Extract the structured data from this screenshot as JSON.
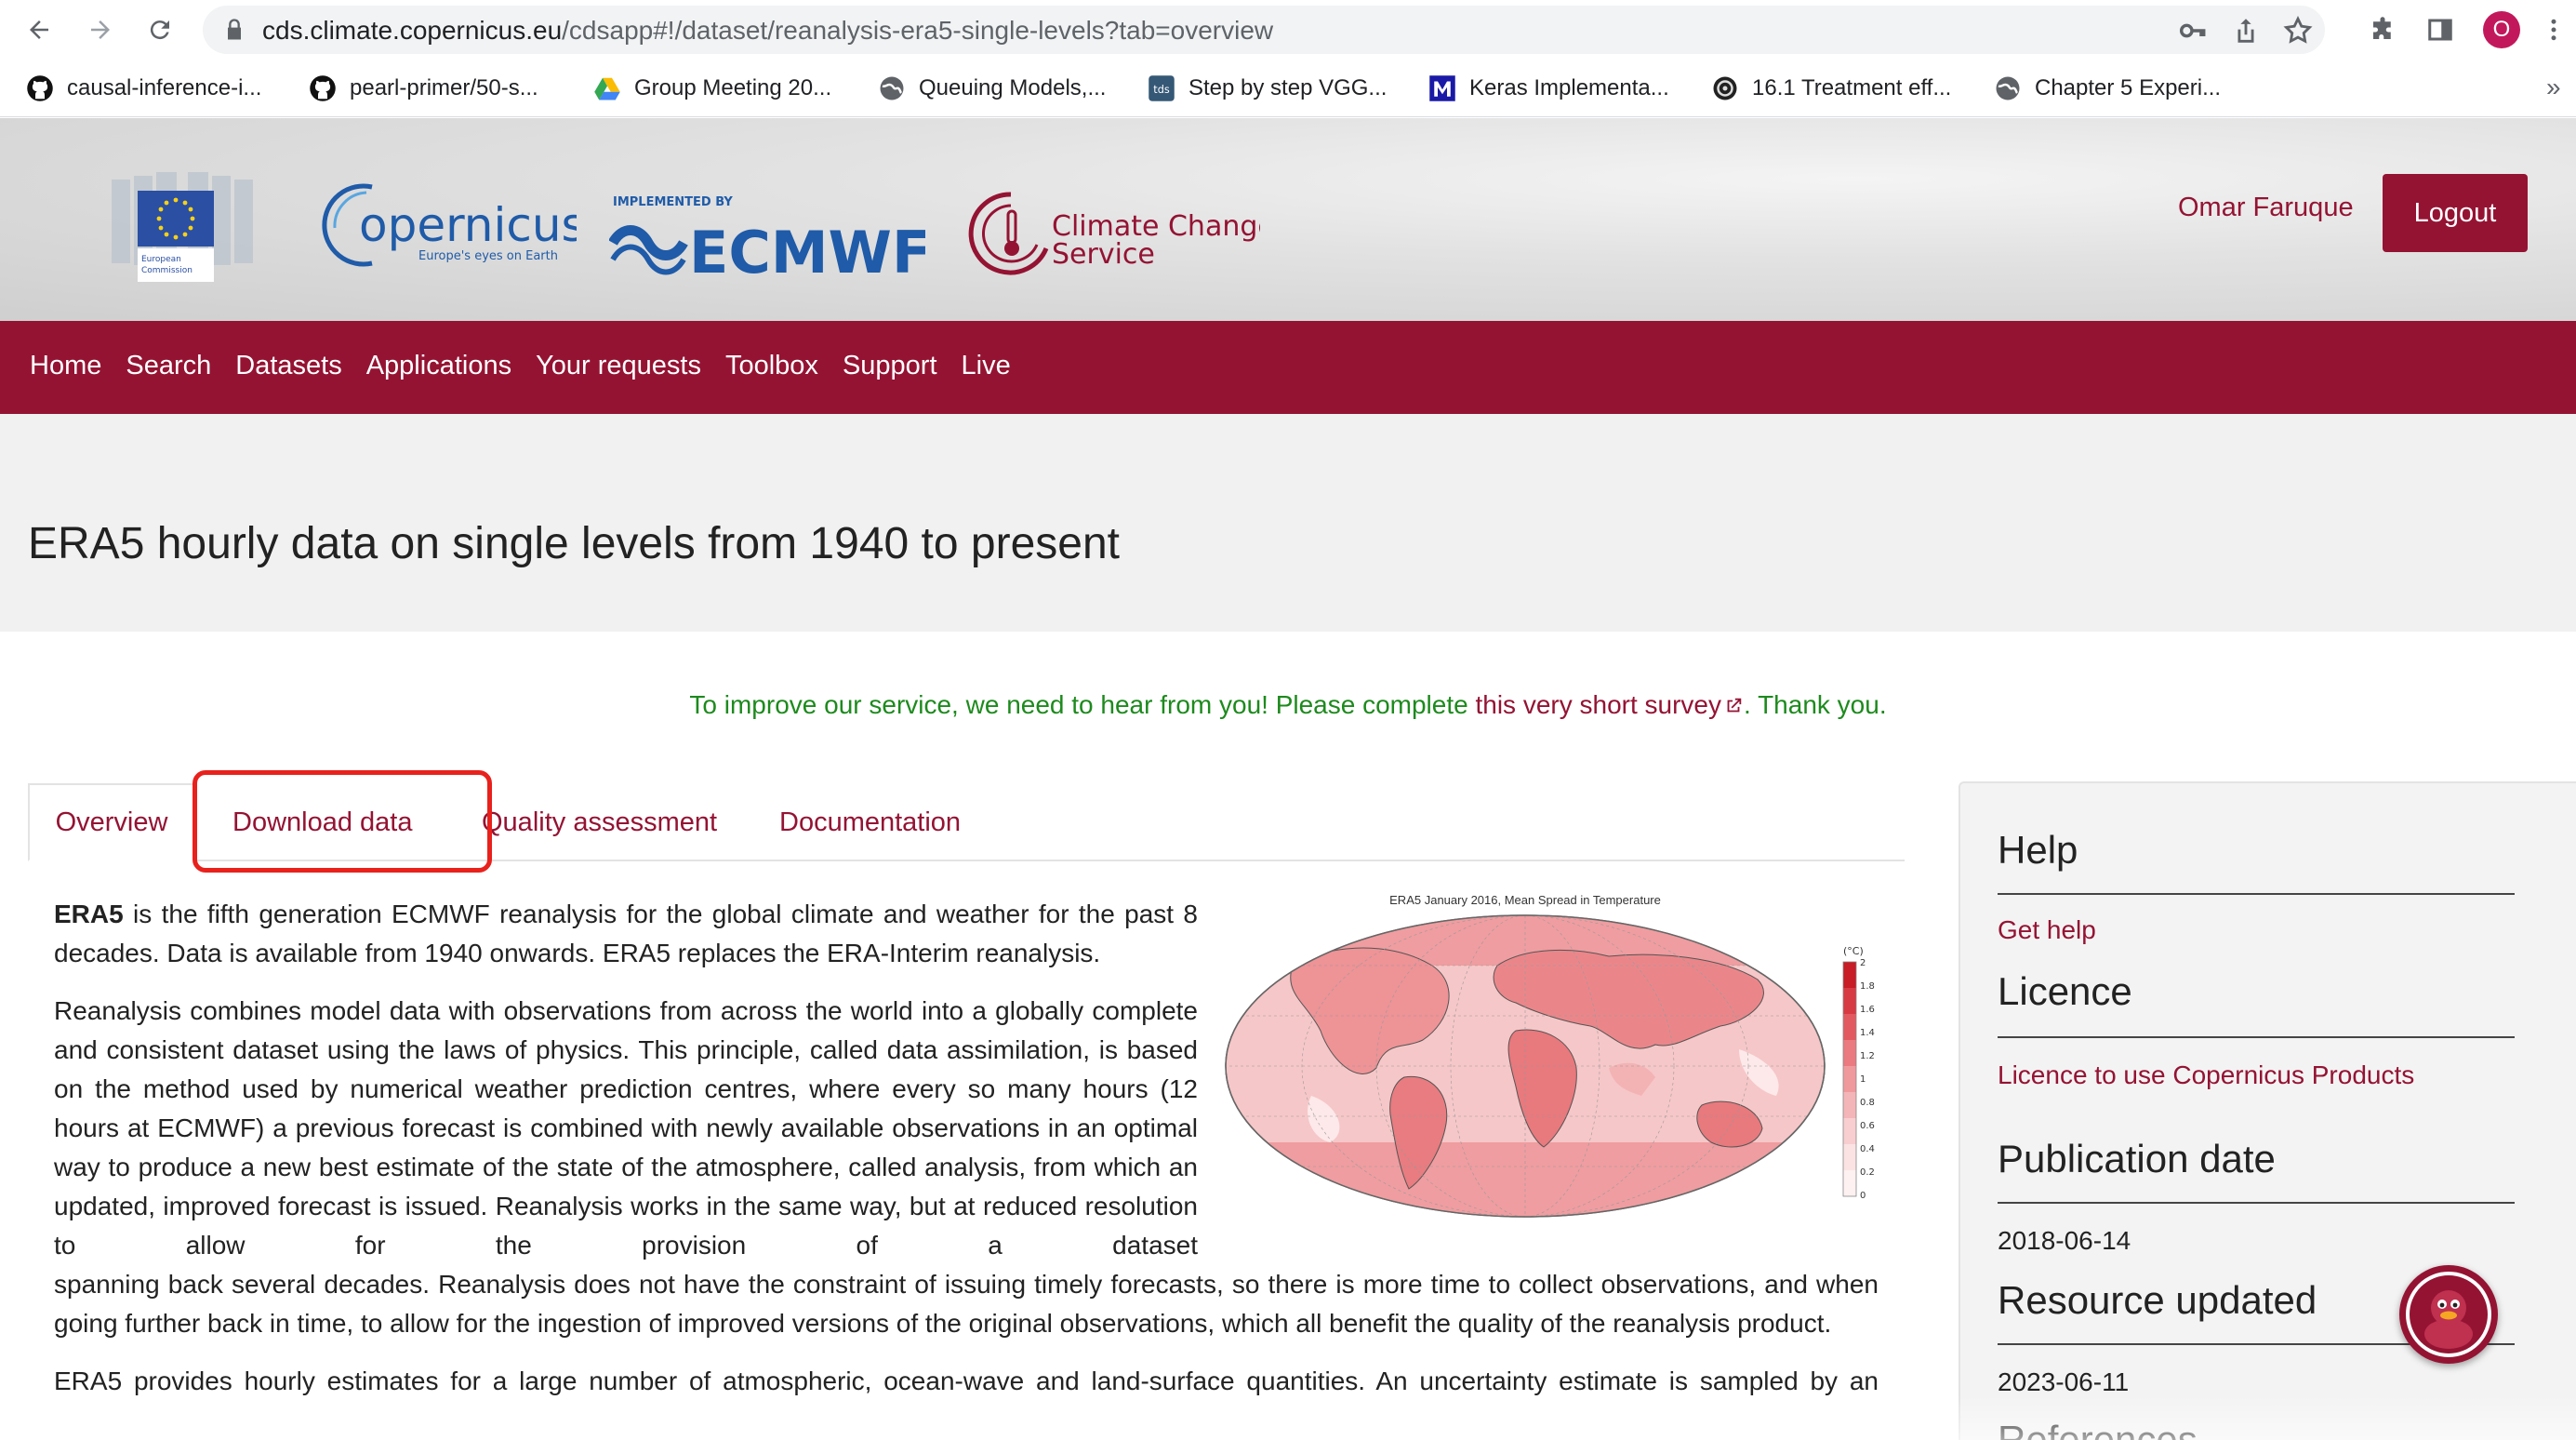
{
  "browser": {
    "url_host": "cds.climate.copernicus.eu",
    "url_path": "/cdsapp#!/dataset/reanalysis-era5-single-levels?tab=overview",
    "profile_initial": "O",
    "icons": {
      "back": "arrow-left-icon",
      "forward": "arrow-right-icon",
      "reload": "reload-icon",
      "lock": "lock-icon",
      "key": "key-icon",
      "share": "share-icon",
      "star": "star-icon",
      "extensions": "puzzle-icon",
      "sidepanel": "side-panel-icon",
      "menu": "kebab-menu-icon"
    },
    "bookmarks": [
      {
        "label": "causal-inference-i...",
        "icon": "github-icon"
      },
      {
        "label": "pearl-primer/50-s...",
        "icon": "github-icon"
      },
      {
        "label": "Group Meeting 20...",
        "icon": "google-drive-icon"
      },
      {
        "label": "Queuing Models,...",
        "icon": "globe-icon"
      },
      {
        "label": "Step by step VGG...",
        "icon": "tds-icon"
      },
      {
        "label": "Keras Implementa...",
        "icon": "m-logo-icon"
      },
      {
        "label": "16.1 Treatment eff...",
        "icon": "badge-icon"
      },
      {
        "label": "Chapter 5 Experi...",
        "icon": "globe-icon"
      }
    ],
    "bookmarks_more": "»"
  },
  "header": {
    "ec_lines": [
      "European",
      "Commission"
    ],
    "copernicus_name": "opernicus",
    "copernicus_tagline": "Europe's eyes on Earth",
    "ecmwf_caption": "IMPLEMENTED BY",
    "ecmwf_name": "ECMWF",
    "c3s_line1": "Climate Change",
    "c3s_line2": "Service",
    "user_name": "Omar Faruque",
    "logout_label": "Logout"
  },
  "nav": {
    "items": [
      "Home",
      "Search",
      "Datasets",
      "Applications",
      "Your requests",
      "Toolbox",
      "Support",
      "Live"
    ]
  },
  "page": {
    "title": "ERA5 hourly data on single levels from 1940 to present"
  },
  "survey": {
    "text_before": "To improve our service, we need to hear from you! Please complete ",
    "link": "this very short survey",
    "text_after": ". Thank you."
  },
  "tabs": [
    {
      "label": "Overview",
      "active": true
    },
    {
      "label": "Download data",
      "active": false
    },
    {
      "label": "Quality assessment",
      "active": false
    },
    {
      "label": "Documentation",
      "active": false
    }
  ],
  "content": {
    "p1_bold": "ERA5",
    "p1_rest": " is the fifth generation ECMWF reanalysis for the global climate and weather for the past 8 decades. Data is available from 1940 onwards. ERA5 replaces the ERA-Interim reanalysis.",
    "p2_narrow": "Reanalysis combines model data with observations from across the world into a globally complete and consistent dataset using the laws of physics. This principle, called data assimilation, is based on the method used by numerical weather prediction centres, where every so many hours (12 hours at ECMWF) a previous forecast is combined with newly available observations in an optimal way to produce a new best estimate of the state of the atmosphere, called analysis, from which an updated, improved forecast is issued. Reanalysis works in the same way, but at reduced resolution to allow for the provision of a dataset",
    "p2_wide": "spanning back several decades. Reanalysis does not have the constraint of issuing timely forecasts, so there is more time to collect observations, and when going further back in time, to allow for the ingestion of improved versions of the original observations, which all benefit the quality of the reanalysis product.",
    "p3": "ERA5 provides hourly estimates for a large number of atmospheric, ocean-wave and land-surface quantities. An uncertainty estimate is sampled by an"
  },
  "figure": {
    "title": "ERA5 January 2016, Mean Spread in Temperature",
    "unit": "(°C)",
    "scale_labels": [
      "2",
      "1.8",
      "1.6",
      "1.4",
      "1.2",
      "1",
      "0.8",
      "0.6",
      "0.4",
      "0.2",
      "0"
    ]
  },
  "sidebar": {
    "help_heading": "Help",
    "help_link": "Get help",
    "licence_heading": "Licence",
    "licence_link": "Licence to use Copernicus Products",
    "pub_heading": "Publication date",
    "pub_value": "2018-06-14",
    "updated_heading": "Resource updated",
    "updated_value": "2023-06-11",
    "references_heading": "References"
  },
  "colors": {
    "brand": "#941333",
    "survey_green": "#1d8a1d",
    "highlight": "#e8211c"
  },
  "chat": {
    "icon": "chat-assistant-duck-icon"
  }
}
